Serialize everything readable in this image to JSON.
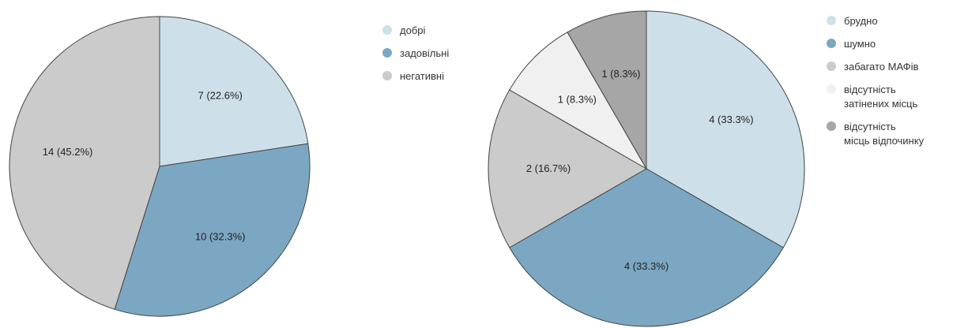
{
  "chart_data": [
    {
      "type": "pie",
      "title": "",
      "slices": [
        {
          "label": "добрі",
          "value": 7,
          "percent": "22.6%",
          "display": "7 (22.6%)",
          "color": "#cde0ea"
        },
        {
          "label": "задовільні",
          "value": 10,
          "percent": "32.3%",
          "display": "10 (32.3%)",
          "color": "#7ba7c2"
        },
        {
          "label": "негативні",
          "value": 14,
          "percent": "45.2%",
          "display": "14 (45.2%)",
          "color": "#cbcbcb"
        }
      ],
      "start_angle_deg": 0,
      "direction": "clockwise",
      "legend": "right"
    },
    {
      "type": "pie",
      "title": "",
      "slices": [
        {
          "label": "брудно",
          "value": 4,
          "percent": "33.3%",
          "display": "4 (33.3%)",
          "color": "#cde0ea"
        },
        {
          "label": "шумно",
          "value": 4,
          "percent": "33.3%",
          "display": "4 (33.3%)",
          "color": "#7ba7c2"
        },
        {
          "label": "забагато МАФів",
          "value": 2,
          "percent": "16.7%",
          "display": "2 (16.7%)",
          "color": "#cbcbcb"
        },
        {
          "label": "відсутність затінених місць",
          "value": 1,
          "percent": "8.3%",
          "display": "1 (8.3%)",
          "color": "#f0f0f0"
        },
        {
          "label": "відсутність місць відпочинку",
          "value": 1,
          "percent": "8.3%",
          "display": "1 (8.3%)",
          "color": "#a6a6a6"
        }
      ],
      "start_angle_deg": 0,
      "direction": "clockwise",
      "legend": "right"
    }
  ]
}
